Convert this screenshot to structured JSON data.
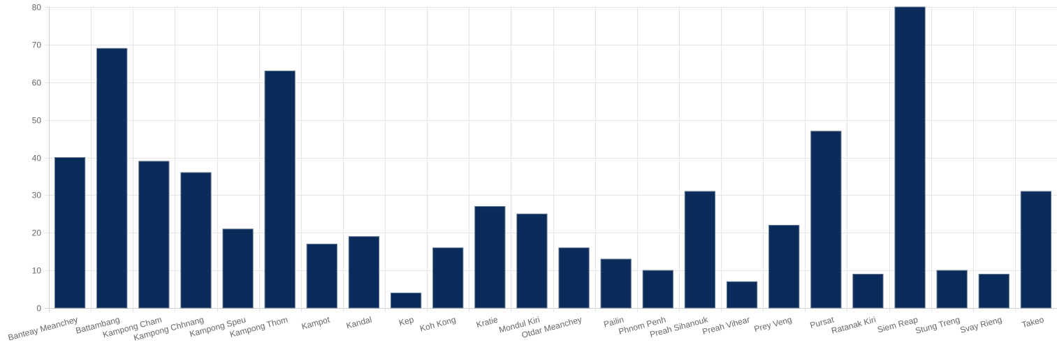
{
  "chart_data": {
    "type": "bar",
    "categories": [
      "Banteay Meanchey",
      "Battambang",
      "Kampong Cham",
      "Kampong Chhnang",
      "Kampong Speu",
      "Kampong Thom",
      "Kampot",
      "Kandal",
      "Kep",
      "Koh Kong",
      "Kratie",
      "Mondul Kiri",
      "Otdar Meanchey",
      "Pailin",
      "Phnom Penh",
      "Preah Sihanouk",
      "Preah Vihear",
      "Prey Veng",
      "Pursat",
      "Ratanak Kiri",
      "Siem Reap",
      "Stung Treng",
      "Svay Rieng",
      "Takeo"
    ],
    "values": [
      40,
      69,
      39,
      36,
      21,
      63,
      17,
      19,
      4,
      16,
      27,
      25,
      16,
      13,
      10,
      31,
      7,
      22,
      47,
      9,
      80,
      10,
      9,
      31
    ],
    "title": "",
    "xlabel": "",
    "ylabel": "",
    "ylim": [
      0,
      80
    ],
    "yticks": [
      "0",
      "10",
      "20",
      "30",
      "40",
      "50",
      "60",
      "70",
      "80"
    ],
    "grid": true,
    "colors": {
      "bar_fill": "#0b2c5a",
      "bar_border": "#6b7f96"
    }
  }
}
